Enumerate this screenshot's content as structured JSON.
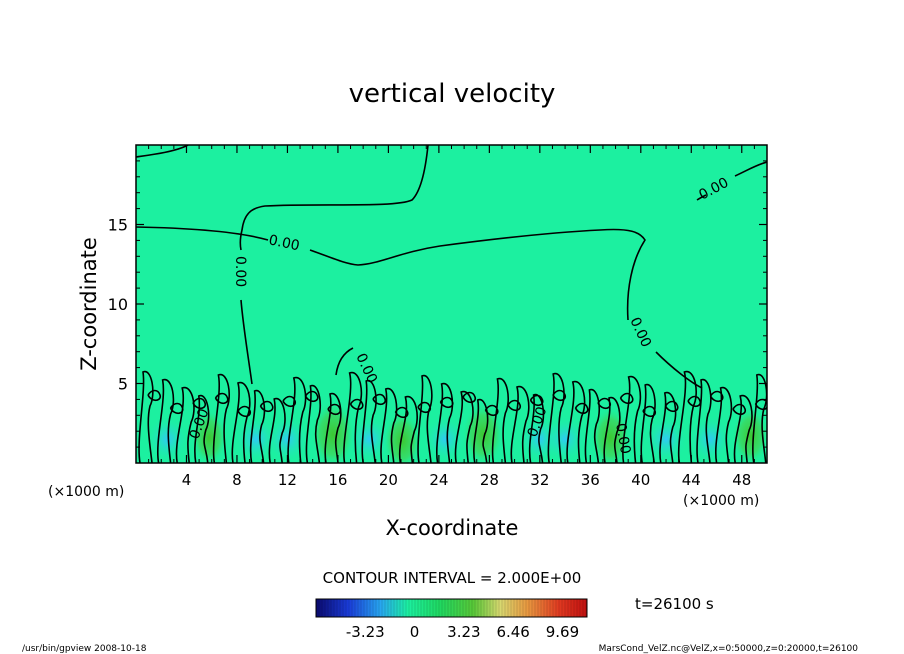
{
  "chart_data": {
    "type": "heatmap",
    "title": "vertical velocity",
    "xlabel": "X-coordinate",
    "ylabel": "Z-coordinate",
    "x_unit_left": "(×1000 m)",
    "x_unit_right": "(×1000 m)",
    "xlim": [
      0,
      50
    ],
    "ylim": [
      0,
      20
    ],
    "x_ticks": [
      4,
      8,
      12,
      16,
      20,
      24,
      28,
      32,
      36,
      40,
      44,
      48
    ],
    "y_ticks": [
      5,
      10,
      15
    ],
    "contour_interval_text": "CONTOUR INTERVAL = 2.000E+00",
    "time_text": "t=26100 s",
    "contour_label": "0.00",
    "colorbar": {
      "ticks": [
        "-3.23",
        "0",
        "3.23",
        "6.46",
        "9.69"
      ],
      "tick_values": [
        -3.23,
        0,
        3.23,
        6.46,
        9.69
      ],
      "range": [
        -6.46,
        11.3
      ]
    },
    "updraft_cells": [
      {
        "x": 5.8,
        "z": 1.6,
        "w": 2.5
      },
      {
        "x": 15.6,
        "z": 1.8,
        "w": 4.0
      },
      {
        "x": 21.1,
        "z": 1.4,
        "w": 3.0
      },
      {
        "x": 27.5,
        "z": 1.8,
        "w": 3.5
      },
      {
        "x": 37.6,
        "z": 1.6,
        "w": 3.2
      },
      {
        "x": 48.7,
        "z": 1.7,
        "w": 2.8
      }
    ],
    "downdraft_cells": [
      {
        "x": 2.5,
        "z": 1.5,
        "w": -1.5
      },
      {
        "x": 9.5,
        "z": 1.5,
        "w": -1.8
      },
      {
        "x": 12.0,
        "z": 1.5,
        "w": -1.2
      },
      {
        "x": 18.5,
        "z": 1.5,
        "w": -1.5
      },
      {
        "x": 24.5,
        "z": 1.5,
        "w": -1.5
      },
      {
        "x": 32.0,
        "z": 1.5,
        "w": -2.0
      },
      {
        "x": 34.0,
        "z": 1.5,
        "w": -1.5
      },
      {
        "x": 42.0,
        "z": 1.5,
        "w": -1.8
      },
      {
        "x": 45.5,
        "z": 1.5,
        "w": -1.5
      }
    ]
  },
  "footer": {
    "left_text": "/usr/bin/gpview   2008-10-18",
    "right_text": "MarsCond_VelZ.nc@VelZ,x=0:50000,z=0:20000,t=26100"
  },
  "colors": {
    "field_background": "#1cf0a0",
    "updraft": "#20c820",
    "downdraft": "#30d8f0",
    "contour": "#000000"
  }
}
